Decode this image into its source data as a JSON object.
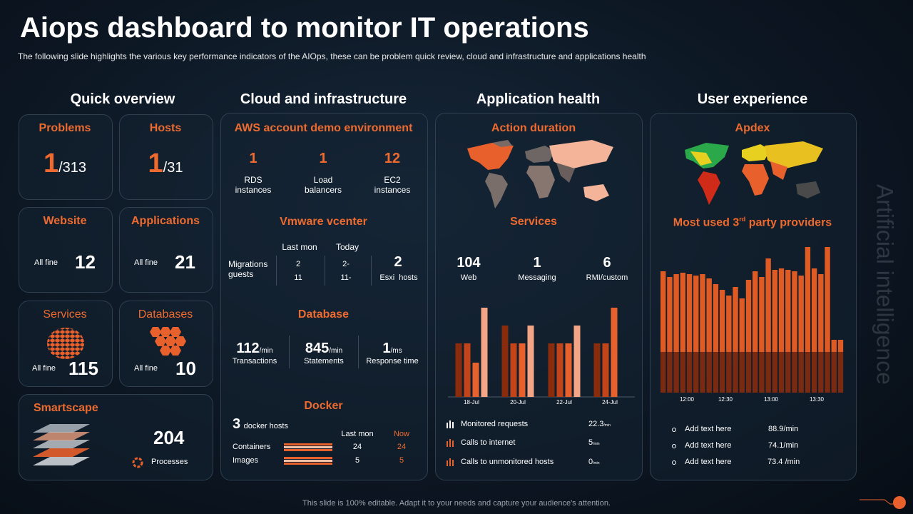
{
  "title": "Aiops dashboard to monitor IT operations",
  "subtitle": "The following slide highlights the various  key performance  indicators of the AIOps, these can be problem  quick review,  cloud and infrastructure  and applications health",
  "side_text": "Artificial intelligence",
  "footer": "This slide is 100% editable. Adapt it to your needs and capture your audience's attention.",
  "quick_overview": {
    "heading": "Quick overview",
    "problems": {
      "label": "Problems",
      "value": 1,
      "total": "/313"
    },
    "hosts": {
      "label": "Hosts",
      "value": 1,
      "total": "/31"
    },
    "website": {
      "label": "Website",
      "status": "All fine",
      "value": 12
    },
    "applications": {
      "label": "Applications",
      "status": "All fine",
      "value": 21
    },
    "services": {
      "label": "Services",
      "status": "All fine",
      "value": 115
    },
    "databases": {
      "label": "Databases",
      "status": "All fine",
      "value": 10
    },
    "smartscape": {
      "label": "Smartscape",
      "value": 204,
      "caption": "Processes"
    }
  },
  "cloud": {
    "heading": "Cloud and infrastructure",
    "aws": {
      "title": "AWS account demo environment",
      "items": [
        {
          "value": 1,
          "label": "RDS instances"
        },
        {
          "value": 1,
          "label": "Load balancers"
        },
        {
          "value": 12,
          "label": "EC2 instances"
        }
      ]
    },
    "vmware": {
      "title": "Vmware vcenter",
      "row_label": "Migrations guests",
      "columns": [
        "Last mon",
        "Today"
      ],
      "last_mon": [
        2,
        11
      ],
      "today": [
        "2-",
        "11-"
      ],
      "esxi": {
        "value": 2,
        "label": "Esxi  hosts"
      }
    },
    "database": {
      "title": "Database",
      "items": [
        {
          "value": 112,
          "unit": "/min",
          "label": "Transactions"
        },
        {
          "value": 845,
          "unit": "/min",
          "label": "Statements"
        },
        {
          "value": 1,
          "unit": "/ms",
          "label": "Response time"
        }
      ]
    },
    "docker": {
      "title": "Docker",
      "hosts": 3,
      "hosts_label": "docker hosts",
      "columns": [
        "Last mon",
        "Now"
      ],
      "rows": [
        {
          "label": "Containers",
          "last_mon": 24,
          "now": 24
        },
        {
          "label": "Images",
          "last_mon": 5,
          "now": 5
        }
      ]
    }
  },
  "app_health": {
    "heading": "Application health",
    "action_title": "Action duration",
    "services_title": "Services",
    "services": [
      {
        "value": 104,
        "label": "Web"
      },
      {
        "value": 1,
        "label": "Messaging"
      },
      {
        "value": 6,
        "label": "RMI/custom"
      }
    ],
    "chart": {
      "type": "bar",
      "categories": [
        "18-Jul",
        "20-Jul",
        "22-Jul",
        "24-Jul"
      ],
      "series": [
        {
          "color": "#8a2c0c",
          "values": [
            75,
            100,
            75,
            75
          ]
        },
        {
          "color": "#c4441a",
          "values": [
            75,
            75,
            75,
            75
          ]
        },
        {
          "color": "#e8602c",
          "values": [
            48,
            75,
            75,
            125
          ]
        },
        {
          "color": "#f4a585",
          "values": [
            125,
            100,
            100,
            null
          ]
        }
      ]
    },
    "metrics": [
      {
        "label": "Monitored requests",
        "value": "22.3",
        "unit": "/min"
      },
      {
        "label": "Calls to internet",
        "value": "5",
        "unit": "/min"
      },
      {
        "label": "Calls to unmonitored hosts",
        "value": "0",
        "unit": "/min"
      }
    ]
  },
  "user_experience": {
    "heading": "User experience",
    "apdex_title": "Apdex",
    "providers_title": [
      "Most used 3",
      "rd",
      " party providers"
    ],
    "chart": {
      "type": "bar",
      "x_labels": [
        "12:00",
        "12:30",
        "13:00",
        "13:30"
      ],
      "series": [
        {
          "color": "#7a2a10",
          "values": [
            57,
            57,
            57,
            57,
            57,
            57,
            57,
            57,
            57,
            57,
            57,
            57,
            57,
            57,
            57,
            57,
            57,
            57,
            57,
            57,
            57,
            57,
            57,
            57,
            57,
            57,
            57,
            57
          ]
        },
        {
          "color": "#e05a24",
          "values": [
            113,
            105,
            109,
            111,
            109,
            107,
            109,
            103,
            95,
            87,
            79,
            91,
            75,
            101,
            113,
            105,
            131,
            115,
            117,
            115,
            113,
            107,
            147,
            117,
            109,
            147,
            17,
            17
          ]
        }
      ]
    },
    "providers": [
      {
        "label": "Add text here",
        "value": "88.9/min"
      },
      {
        "label": "Add text here",
        "value": "74.1/min"
      },
      {
        "label": "Add text here",
        "value": "73.4 /min"
      }
    ]
  }
}
